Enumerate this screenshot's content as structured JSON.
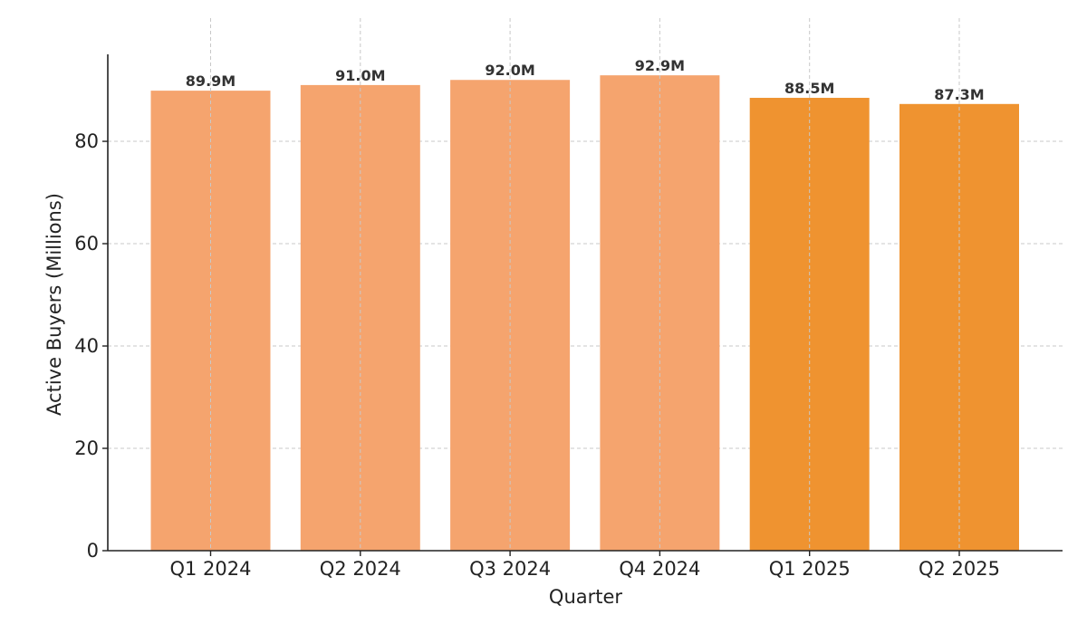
{
  "chart_data": {
    "type": "bar",
    "title": "",
    "xlabel": "Quarter",
    "ylabel": "Active Buyers (Millions)",
    "categories": [
      "Q1 2024",
      "Q2 2024",
      "Q3 2024",
      "Q4 2024",
      "Q1 2025",
      "Q2 2025"
    ],
    "values": [
      89.9,
      91.0,
      92.0,
      92.9,
      88.5,
      87.3
    ],
    "data_labels": [
      "89.9M",
      "91.0M",
      "92.0M",
      "92.9M",
      "88.5M",
      "87.3M"
    ],
    "bar_colors": [
      "#f5a46e",
      "#f5a46e",
      "#f5a46e",
      "#f5a46e",
      "#ef9330",
      "#ef9330"
    ],
    "ylim": [
      0,
      97
    ],
    "yticks": [
      0,
      20,
      40,
      60,
      80
    ],
    "ytick_labels": [
      "0",
      "20",
      "40",
      "60",
      "80"
    ],
    "grid": true,
    "grid_color": "#c8c8c8",
    "axis_color": "#222222"
  }
}
